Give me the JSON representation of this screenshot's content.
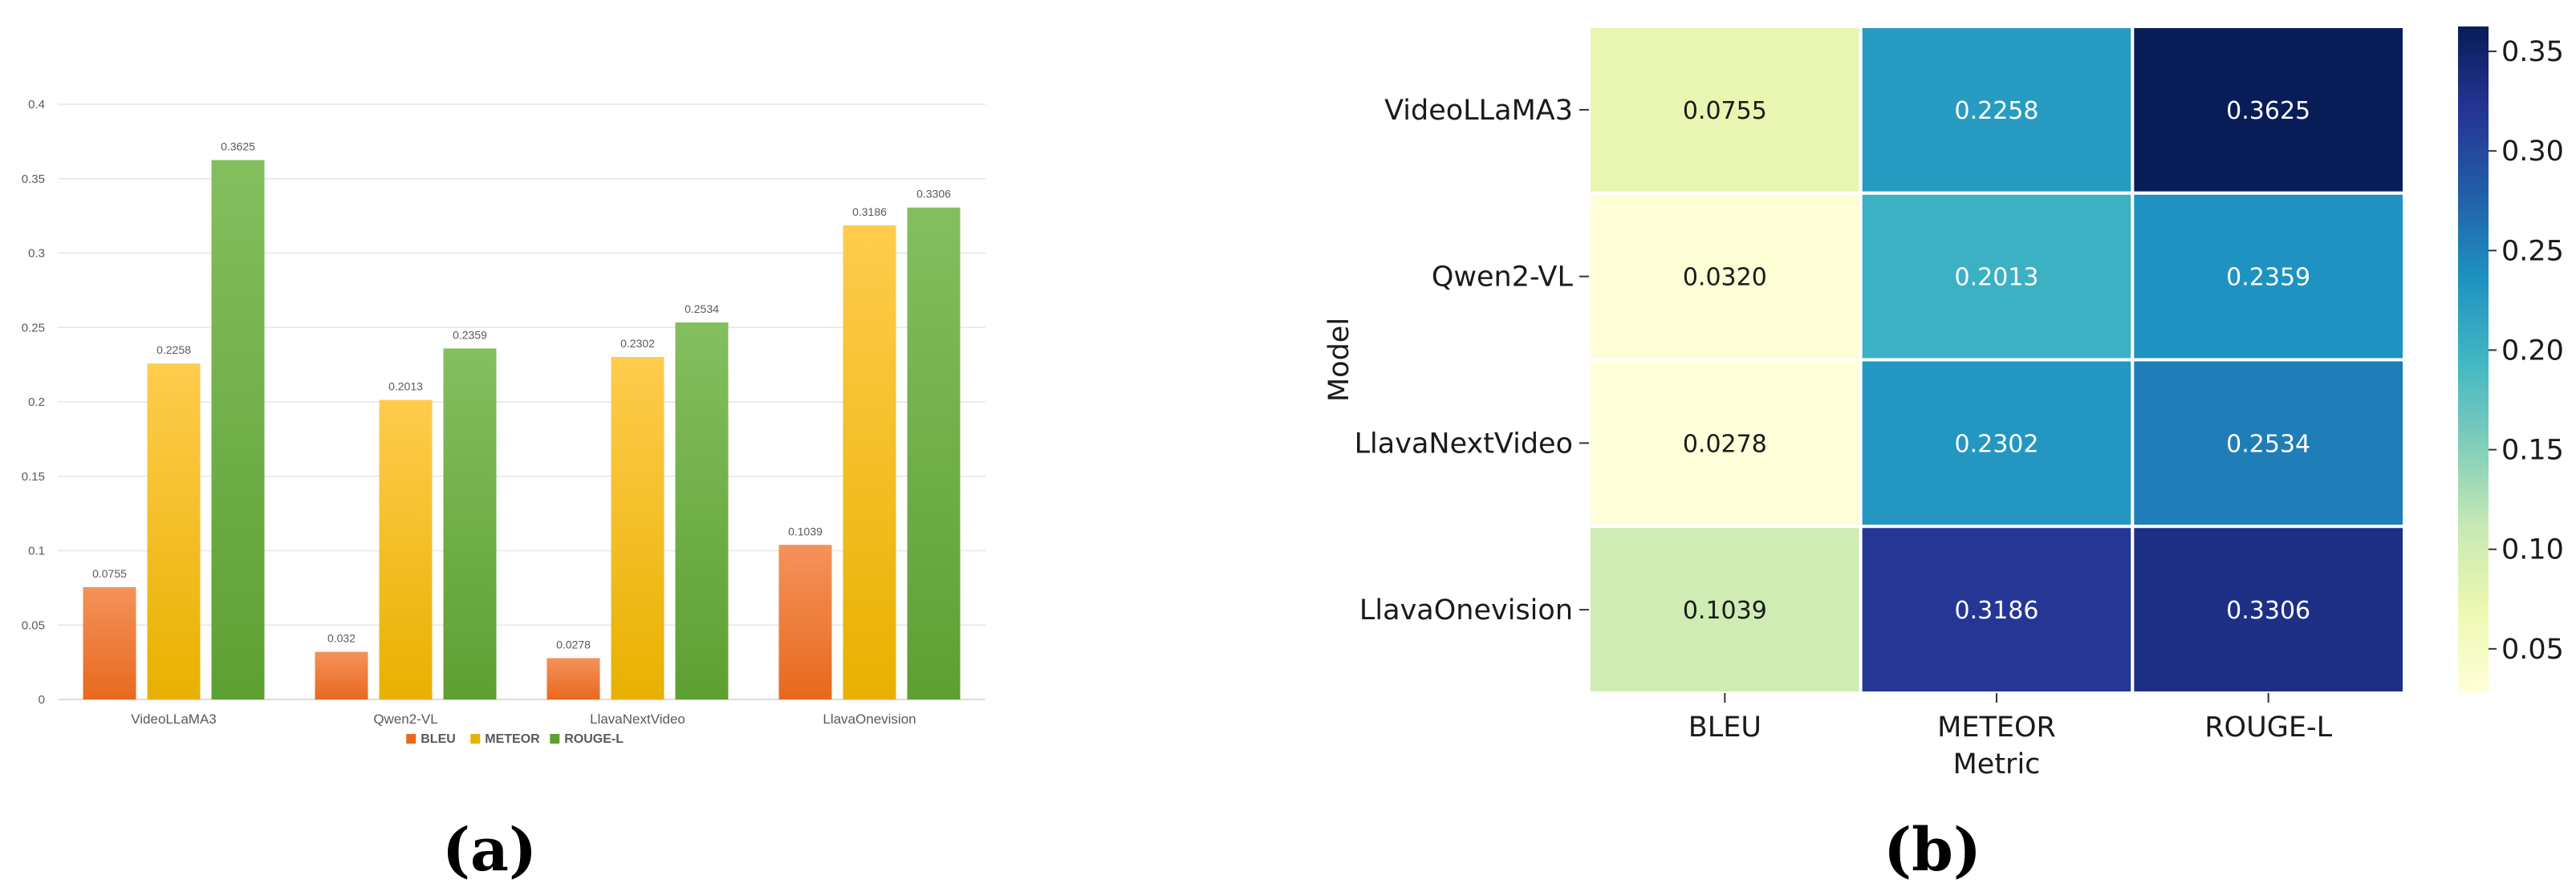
{
  "panel_labels": {
    "a": "(a)",
    "b": "(b)"
  },
  "colors": {
    "bleu_top": "#f4925a",
    "bleu_bottom": "#e8691e",
    "meteor_top": "#ffcc4d",
    "meteor_bottom": "#e8b100",
    "rougel_top": "#84bf5f",
    "rougel_bottom": "#5e9f32"
  },
  "chart_data": [
    {
      "type": "bar",
      "panel": "(a)",
      "categories": [
        "VideoLLaMA3",
        "Qwen2-VL",
        "LlavaNextVideo",
        "LlavaOnevision"
      ],
      "series": [
        {
          "name": "BLEU",
          "values": [
            0.0755,
            0.032,
            0.0278,
            0.1039
          ],
          "labels": [
            "0.0755",
            "0.032",
            "0.0278",
            "0.1039"
          ]
        },
        {
          "name": "METEOR",
          "values": [
            0.2258,
            0.2013,
            0.2302,
            0.3186
          ],
          "labels": [
            "0.2258",
            "0.2013",
            "0.2302",
            "0.3186"
          ]
        },
        {
          "name": "ROUGE-L",
          "values": [
            0.3625,
            0.2359,
            0.2534,
            0.3306
          ],
          "labels": [
            "0.3625",
            "0.2359",
            "0.2534",
            "0.3306"
          ]
        }
      ],
      "ylim": [
        0,
        0.4
      ],
      "yticks": [
        "0",
        "0.05",
        "0.1",
        "0.15",
        "0.2",
        "0.25",
        "0.3",
        "0.35",
        "0.4"
      ],
      "grid": true,
      "legend": "bottom-center"
    },
    {
      "type": "heatmap",
      "panel": "(b)",
      "rows": [
        "VideoLLaMA3",
        "Qwen2-VL",
        "LlavaNextVideo",
        "LlavaOnevision"
      ],
      "columns": [
        "BLEU",
        "METEOR",
        "ROUGE-L"
      ],
      "values": [
        [
          0.0755,
          0.2258,
          0.3625
        ],
        [
          0.032,
          0.2013,
          0.2359
        ],
        [
          0.0278,
          0.2302,
          0.2534
        ],
        [
          0.1039,
          0.3186,
          0.3306
        ]
      ],
      "cell_labels": [
        [
          "0.0755",
          "0.2258",
          "0.3625"
        ],
        [
          "0.0320",
          "0.2013",
          "0.2359"
        ],
        [
          "0.0278",
          "0.2302",
          "0.2534"
        ],
        [
          "0.1039",
          "0.3186",
          "0.3306"
        ]
      ],
      "xlabel": "Metric",
      "ylabel": "Model",
      "colormap": "YlGnBu",
      "colorbar_range": [
        0.0278,
        0.3625
      ],
      "colorbar_ticks": [
        "0.05",
        "0.10",
        "0.15",
        "0.20",
        "0.25",
        "0.30",
        "0.35"
      ]
    }
  ]
}
